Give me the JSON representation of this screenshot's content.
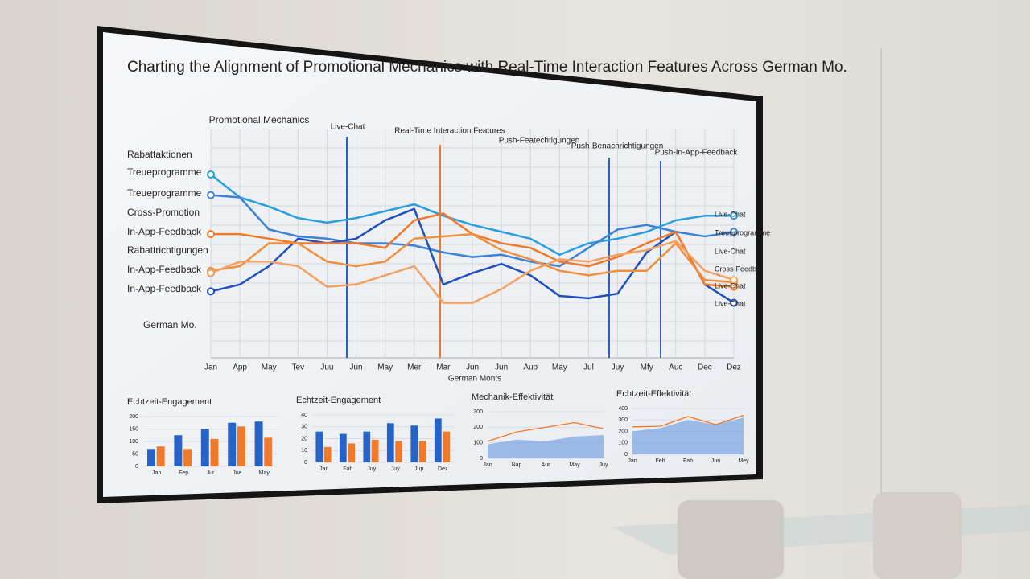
{
  "title": "Charting the Alignment of Promotional Mechanics with Real-Time Interaction Features Across German Mo.",
  "chart_data": [
    {
      "type": "line",
      "column_labels": [
        "Promotional Mechanics",
        "Live-Chat",
        "Real-Time Interaction Features",
        "Push-Featechtigungen",
        "Push-Benachrichtigungen",
        "Push-In-App-Feedback"
      ],
      "left_labels": [
        "Rabattaktionen",
        "Treueprogramme",
        "Treueprogramme",
        "Cross-Promotion",
        "In-App-Feedback",
        "Rabattrichtigungen",
        "In-App-Feedback",
        "In-App-Feedback",
        "German Mo."
      ],
      "right_labels": [
        "Live-Chat",
        "Treueprogramme",
        "Live-Chat",
        "Cross-Feedbk",
        "Live-Chat",
        "Live-Chat"
      ],
      "x_label": "German Monts",
      "categories": [
        "Jan",
        "App",
        "May",
        "Tev",
        "Juu",
        "Jun",
        "May",
        "Mer",
        "Mar",
        "Jun",
        "Jun",
        "Aup",
        "May",
        "Jul",
        "Juy",
        "Mfy",
        "Auc",
        "Dec",
        "Dez"
      ],
      "ylim": [
        0,
        100
      ],
      "grid": true,
      "series": [
        {
          "color": "#2a9fe0",
          "values": [
            80,
            70,
            66,
            61,
            59,
            61,
            64,
            67,
            62,
            58,
            55,
            52,
            45,
            50,
            52,
            55,
            60,
            62,
            62
          ]
        },
        {
          "color": "#3c82d8",
          "values": [
            71,
            70,
            56,
            53,
            52,
            50,
            50,
            49,
            46,
            44,
            45,
            42,
            40,
            48,
            56,
            58,
            55,
            53,
            55
          ]
        },
        {
          "color": "#1f4fc0",
          "values": [
            29,
            32,
            40,
            52,
            50,
            52,
            60,
            65,
            32,
            37,
            41,
            36,
            27,
            26,
            28,
            46,
            55,
            32,
            24
          ]
        },
        {
          "color": "#f07a2a",
          "values": [
            54,
            54,
            52,
            50,
            50,
            50,
            48,
            60,
            63,
            54,
            50,
            48,
            42,
            40,
            44,
            50,
            55,
            32,
            31
          ]
        },
        {
          "color": "#f0903c",
          "values": [
            38,
            40,
            50,
            50,
            42,
            40,
            42,
            52,
            53,
            54,
            47,
            43,
            38,
            36,
            38,
            38,
            50,
            34,
            33
          ]
        },
        {
          "color": "#f4a060",
          "values": [
            37,
            42,
            42,
            40,
            31,
            32,
            36,
            40,
            24,
            24,
            30,
            38,
            43,
            42,
            45,
            47,
            51,
            38,
            34
          ]
        }
      ]
    },
    {
      "type": "bar",
      "title": "Echtzeit-Engagement",
      "categories": [
        "Jan",
        "Fep",
        "Jur",
        "Jue",
        "May"
      ],
      "ylim": [
        0,
        200
      ],
      "yticks": [
        0,
        50,
        100,
        150,
        200
      ],
      "series": [
        {
          "color": "#2563c9",
          "values": [
            70,
            125,
            150,
            175,
            180
          ]
        },
        {
          "color": "#f07a2a",
          "values": [
            80,
            70,
            110,
            160,
            115
          ]
        }
      ]
    },
    {
      "type": "bar",
      "title": "Echtzeit-Engagement",
      "categories": [
        "Jan",
        "Fab",
        "Juy",
        "Juy",
        "Jup",
        "Dez"
      ],
      "ylim": [
        0,
        40
      ],
      "yticks": [
        0,
        10,
        20,
        30,
        40
      ],
      "series": [
        {
          "color": "#2563c9",
          "values": [
            26,
            24,
            26,
            33,
            31,
            37
          ]
        },
        {
          "color": "#f07a2a",
          "values": [
            13,
            16,
            19,
            18,
            18,
            26
          ]
        }
      ]
    },
    {
      "type": "area",
      "title": "Mechanik-Effektivität",
      "categories": [
        "Jan",
        "Nap",
        "Aur",
        "May",
        "Juy"
      ],
      "ylim": [
        0,
        300
      ],
      "yticks": [
        0,
        100,
        200,
        300
      ],
      "series": [
        {
          "color": "#5b8fe0",
          "area": true,
          "values": [
            90,
            120,
            110,
            140,
            150
          ]
        },
        {
          "color": "#f07a2a",
          "values": [
            110,
            170,
            200,
            230,
            190
          ]
        }
      ]
    },
    {
      "type": "area",
      "title": "Echtzeit-Effektivität",
      "categories": [
        "Jan",
        "Feb",
        "Fab",
        "Jun",
        "Mey"
      ],
      "ylim": [
        0,
        400
      ],
      "yticks": [
        0,
        100,
        200,
        300,
        400
      ],
      "series": [
        {
          "color": "#5b8fe0",
          "area": true,
          "values": [
            200,
            230,
            300,
            260,
            320
          ]
        },
        {
          "color": "#f07a2a",
          "values": [
            240,
            245,
            330,
            260,
            340
          ]
        }
      ]
    }
  ]
}
